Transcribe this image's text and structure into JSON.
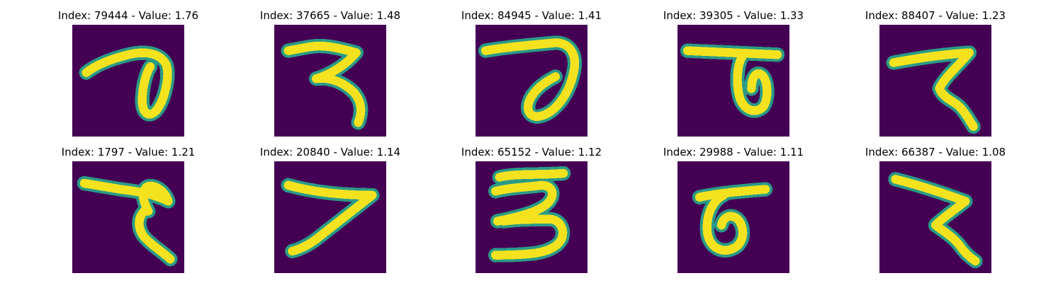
{
  "colors": {
    "background": "#440154",
    "stroke_core": "#f5e21f",
    "stroke_halo": "#2a9b87",
    "text": "#000000"
  },
  "panels": [
    {
      "title": "Index: 79444 - Value: 1.76",
      "glyph": "glyph-79444"
    },
    {
      "title": "Index: 37665 - Value: 1.48",
      "glyph": "glyph-37665"
    },
    {
      "title": "Index: 84945 - Value: 1.41",
      "glyph": "glyph-84945"
    },
    {
      "title": "Index: 39305 - Value: 1.33",
      "glyph": "glyph-39305"
    },
    {
      "title": "Index: 88407 - Value: 1.23",
      "glyph": "glyph-88407"
    },
    {
      "title": "Index: 1797 - Value: 1.21",
      "glyph": "glyph-1797"
    },
    {
      "title": "Index: 20840 - Value: 1.14",
      "glyph": "glyph-20840"
    },
    {
      "title": "Index: 65152 - Value: 1.12",
      "glyph": "glyph-65152"
    },
    {
      "title": "Index: 29988 - Value: 1.11",
      "glyph": "glyph-29988"
    },
    {
      "title": "Index: 66387 - Value: 1.08",
      "glyph": "glyph-66387"
    }
  ]
}
